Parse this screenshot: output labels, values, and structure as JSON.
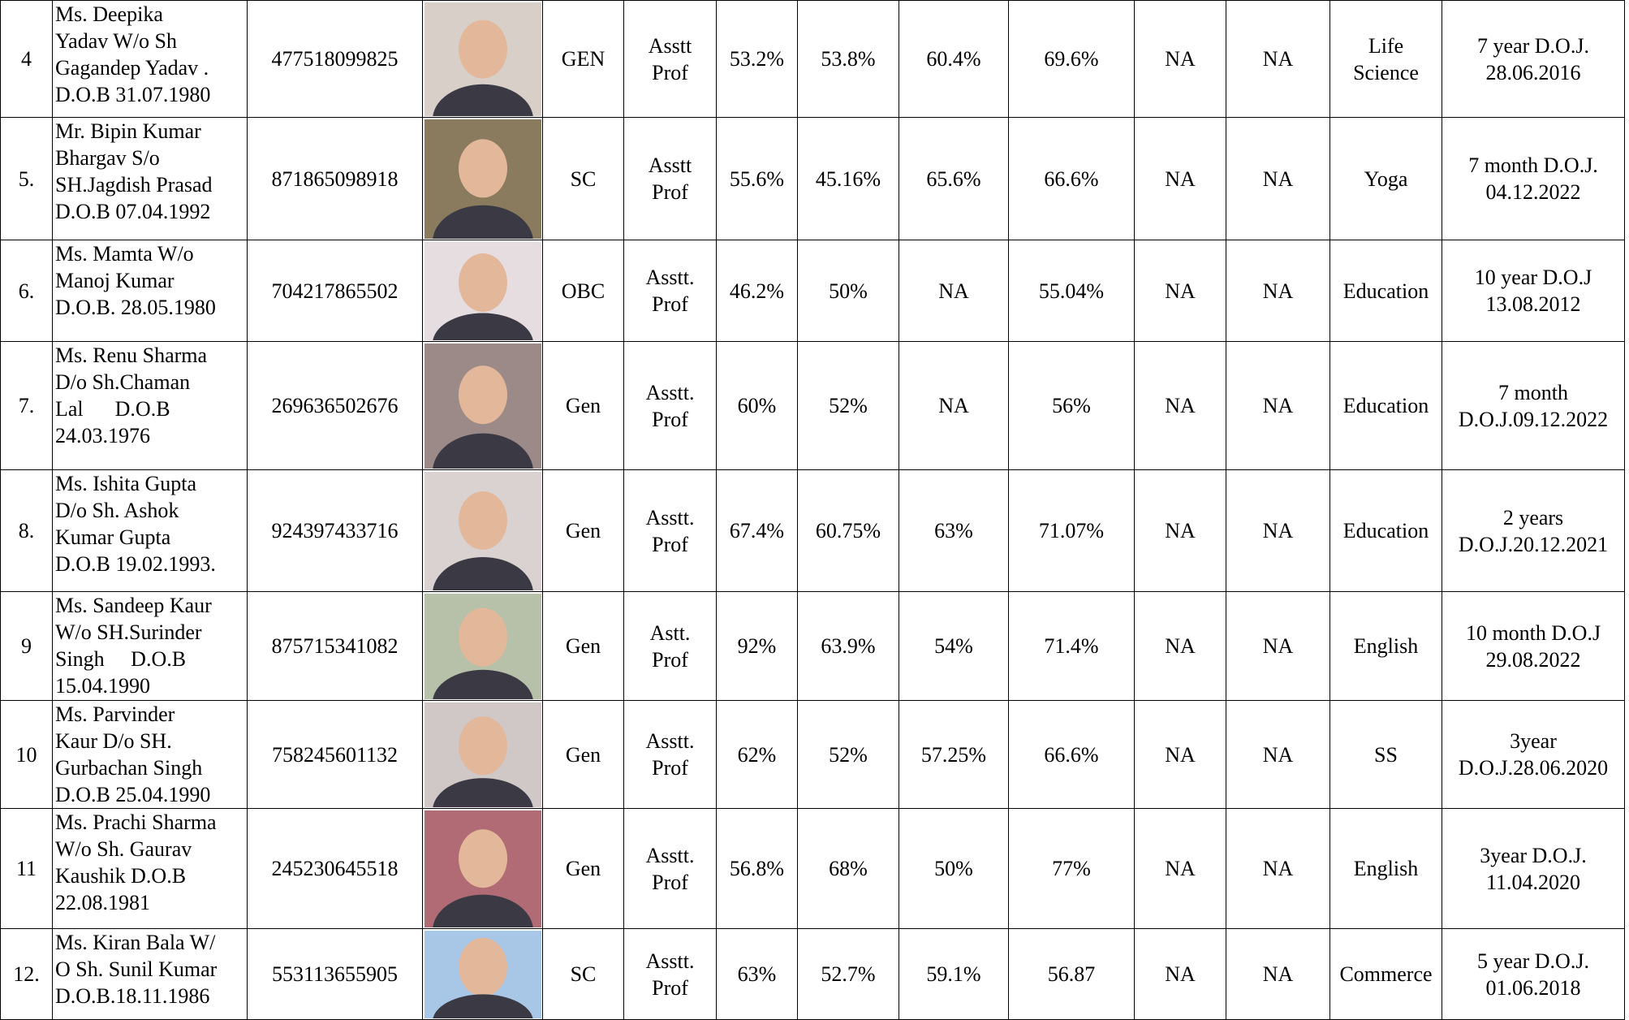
{
  "table": {
    "rows": [
      {
        "cells": [
          "4",
          [
            "Ms. Deepika",
            "Yadav W/o Sh",
            "Gagandep Yadav .",
            "D.O.B 31.07.1980"
          ],
          "477518099825",
          "GEN",
          [
            "Asstt",
            "Prof"
          ],
          "53.2%",
          "53.8%",
          "60.4%",
          "69.6%",
          "NA",
          "NA",
          [
            "Life",
            "Science"
          ],
          [
            "7 year D.O.J.",
            "28.06.2016"
          ]
        ]
      },
      {
        "cells": [
          "5.",
          [
            "Mr. Bipin Kumar",
            "Bhargav S/o",
            "SH.Jagdish Prasad",
            "D.O.B 07.04.1992"
          ],
          "871865098918",
          "SC",
          [
            "Asstt",
            "Prof"
          ],
          "55.6%",
          "45.16%",
          "65.6%",
          "66.6%",
          "NA",
          "NA",
          "Yoga",
          [
            "7 month D.O.J.",
            "04.12.2022"
          ]
        ]
      },
      {
        "cells": [
          "6.",
          [
            "Ms. Mamta W/o",
            "Manoj Kumar",
            "D.O.B. 28.05.1980"
          ],
          "704217865502",
          "OBC",
          [
            "Asstt.",
            "Prof"
          ],
          "46.2%",
          "50%",
          "NA",
          "55.04%",
          "NA",
          "NA",
          "Education",
          [
            "10 year D.O.J",
            "13.08.2012"
          ]
        ]
      },
      {
        "cells": [
          "7.",
          [
            "Ms. Renu Sharma",
            "D/o Sh.Chaman",
            "Lal      D.O.B",
            "24.03.1976"
          ],
          "269636502676",
          "Gen",
          [
            "Asstt.",
            "Prof"
          ],
          "60%",
          "52%",
          "NA",
          "56%",
          "NA",
          "NA",
          "Education",
          [
            "7 month",
            "D.O.J.09.12.2022"
          ]
        ]
      },
      {
        "cells": [
          "8.",
          [
            "Ms. Ishita Gupta",
            "D/o Sh. Ashok",
            "Kumar Gupta",
            "D.O.B 19.02.1993."
          ],
          "924397433716",
          "Gen",
          [
            "Asstt.",
            "Prof"
          ],
          "67.4%",
          "60.75%",
          "63%",
          "71.07%",
          "NA",
          "NA",
          "Education",
          [
            "2 years",
            "D.O.J.20.12.2021"
          ]
        ]
      },
      {
        "cells": [
          "9",
          [
            "Ms. Sandeep Kaur",
            "W/o SH.Surinder",
            "Singh     D.O.B",
            "15.04.1990"
          ],
          "875715341082",
          "Gen",
          [
            "Astt.",
            "Prof"
          ],
          "92%",
          "63.9%",
          "54%",
          "71.4%",
          "NA",
          "NA",
          "English",
          [
            "10 month D.O.J",
            "29.08.2022"
          ]
        ]
      },
      {
        "cells": [
          "10",
          [
            "Ms. Parvinder",
            "Kaur D/o SH.",
            "Gurbachan Singh",
            "D.O.B 25.04.1990"
          ],
          "758245601132",
          "Gen",
          [
            "Asstt.",
            "Prof"
          ],
          "62%",
          "52%",
          "57.25%",
          "66.6%",
          "NA",
          "NA",
          "SS",
          [
            "3year",
            "D.O.J.28.06.2020"
          ]
        ]
      },
      {
        "cells": [
          "11",
          [
            "Ms. Prachi Sharma",
            "W/o Sh. Gaurav",
            "Kaushik D.O.B",
            "22.08.1981"
          ],
          "245230645518",
          "Gen",
          [
            "Asstt.",
            "Prof"
          ],
          "56.8%",
          "68%",
          "50%",
          "77%",
          "NA",
          "NA",
          "English",
          [
            "3year D.O.J.",
            "11.04.2020"
          ]
        ]
      },
      {
        "cells": [
          "12.",
          [
            "Ms. Kiran Bala W/",
            "O Sh. Sunil Kumar",
            "D.O.B.18.11.1986"
          ],
          "553113655905",
          "SC",
          [
            "Asstt.",
            "Prof"
          ],
          "63%",
          "52.7%",
          "59.1%",
          "56.87",
          "NA",
          "NA",
          "Commerce",
          [
            "5 year D.O.J.",
            "01.06.2018"
          ]
        ]
      }
    ]
  }
}
